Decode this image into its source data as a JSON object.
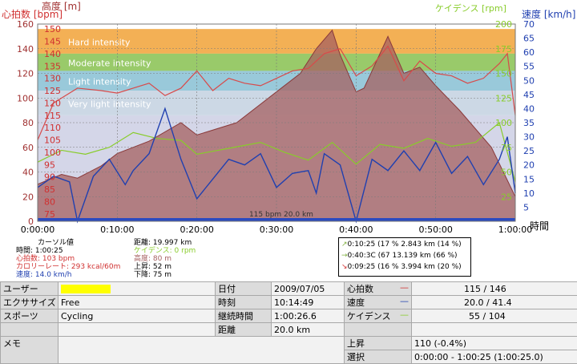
{
  "axes": {
    "left_title_alt": "高度 [m]",
    "left_title_hr": "心拍数 [bpm]",
    "right_title_cad": "ケイデンス [rpm]",
    "right_title_speed": "速度 [km/h]",
    "x_title": "時間",
    "alt_ticks": [
      "160",
      "140",
      "120",
      "100",
      "80",
      "60",
      "40",
      "20",
      "0"
    ],
    "hr_ticks": [
      "150",
      "145",
      "140",
      "135",
      "130",
      "125",
      "120",
      "115",
      "110",
      "105",
      "100",
      "95",
      "90",
      "85",
      "80",
      "75"
    ],
    "cad_ticks": [
      "200",
      "175",
      "150",
      "125",
      "100",
      "75",
      "50",
      "25"
    ],
    "speed_ticks": [
      "70",
      "65",
      "60",
      "55",
      "50",
      "45",
      "40",
      "35",
      "30",
      "25",
      "20",
      "15",
      "10",
      "5"
    ],
    "time_ticks": [
      "0:00:00",
      "0:10:00",
      "0:20:00",
      "0:30:00",
      "0:40:00",
      "0:50:00",
      "1:00:00"
    ]
  },
  "chart_data": {
    "type": "line",
    "x_unit": "minutes",
    "x_range": [
      0,
      60
    ],
    "ylim_altitude": [
      0,
      160
    ],
    "ylim_heartrate": [
      72,
      152
    ],
    "ylim_speed": [
      0,
      70
    ],
    "ylim_cadence": [
      0,
      200
    ],
    "zones": [
      {
        "name": "Hard intensity",
        "range": [
          140,
          150
        ],
        "color": "#f2a742"
      },
      {
        "name": "Moderate intensity",
        "range": [
          133,
          140
        ],
        "color": "#8ec45a"
      },
      {
        "name": "Light intensity",
        "range": [
          125,
          133
        ],
        "color": "#8ec3d6"
      },
      {
        "name": "Very light intensity",
        "range": [
          115,
          125
        ],
        "color": "#c6d4e2"
      }
    ],
    "series": [
      {
        "name": "高度",
        "color": "#a66060",
        "x": [
          0,
          3,
          5,
          8,
          10,
          14,
          18,
          20,
          25,
          30,
          33,
          35,
          37,
          38,
          40,
          41,
          44,
          46,
          48,
          50,
          53,
          57,
          60
        ],
        "values": [
          30,
          38,
          35,
          45,
          55,
          65,
          80,
          70,
          80,
          105,
          120,
          140,
          155,
          135,
          105,
          108,
          150,
          120,
          125,
          110,
          90,
          60,
          20
        ]
      },
      {
        "name": "心拍数",
        "color": "#d84a4a",
        "x": [
          0,
          2,
          5,
          8,
          10,
          12,
          14,
          16,
          18,
          20,
          22,
          24,
          26,
          28,
          30,
          32,
          34,
          36,
          38,
          40,
          42,
          44,
          46,
          48,
          50,
          52,
          54,
          56,
          58,
          59,
          60
        ],
        "values": [
          105,
          120,
          126,
          125,
          124,
          126,
          128,
          123,
          126,
          133,
          125,
          130,
          128,
          127,
          130,
          133,
          134,
          140,
          142,
          131,
          135,
          143,
          129,
          137,
          132,
          131,
          128,
          130,
          136,
          140,
          115
        ]
      },
      {
        "name": "速度",
        "color": "#2040b0",
        "x": [
          0,
          2,
          4,
          5,
          7,
          9,
          11,
          12,
          14,
          16,
          18,
          20,
          22,
          24,
          26,
          28,
          30,
          32,
          34,
          35,
          36,
          38,
          40,
          42,
          44,
          46,
          48,
          50,
          52,
          54,
          56,
          58,
          59,
          60
        ],
        "values": [
          12,
          16,
          14,
          0,
          16,
          22,
          13,
          18,
          24,
          40,
          22,
          8,
          15,
          22,
          20,
          24,
          12,
          17,
          18,
          10,
          24,
          20,
          0,
          22,
          18,
          25,
          18,
          28,
          17,
          23,
          13,
          22,
          30,
          10
        ]
      },
      {
        "name": "ケイデンス",
        "color": "#88cc2a",
        "x": [
          0,
          3,
          6,
          9,
          12,
          15,
          18,
          20,
          24,
          28,
          31,
          34,
          37,
          40,
          43,
          46,
          49,
          52,
          55,
          58,
          60
        ],
        "values": [
          60,
          72,
          68,
          75,
          90,
          84,
          82,
          68,
          74,
          80,
          70,
          62,
          80,
          58,
          78,
          74,
          84,
          76,
          80,
          100,
          40
        ]
      }
    ],
    "bottom_label": "115 bpm 20.0 km"
  },
  "cursor": {
    "title": "カーソル値",
    "time": "時間: 1:00:25",
    "hr": "心拍数: 103 bpm",
    "calorie": "カロリーレート: 293 kcal/60m",
    "speed": "速度: 14.0 km/h",
    "distance": "距離: 19.997 km",
    "cadence": "ケイデンス: 0 rpm",
    "altitude": "高度: 80 m",
    "ascent": "上昇: 52 m",
    "descent": "下降: 75 m"
  },
  "zone_summary": [
    {
      "text": "0:10:25 (17 % 2.843 km (14 %)",
      "color": "#80b040"
    },
    {
      "text": "0:40:3C (67   13.139 km (66 %)",
      "color": "#80b040"
    },
    {
      "text": "0:09:25 (16 % 3.994 km (20 %)",
      "color": "#d03030"
    }
  ],
  "info": {
    "user_label": "ユーザー",
    "exercise_label": "エクササイズ",
    "exercise_value": "Free",
    "sport_label": "スポーツ",
    "sport_value": "Cycling",
    "memo_label": "メモ",
    "date_label": "日付",
    "date_value": "2009/07/05",
    "time_label": "時刻",
    "time_value": "10:14:49",
    "duration_label": "継続時間",
    "duration_value": "1:00:26.6",
    "distance_label": "距離",
    "distance_value": "20.0 km",
    "hr_label": "心拍数",
    "hr_value": "115 / 146",
    "speed_label": "速度",
    "speed_value": "20.0 / 41.4",
    "cadence_label": "ケイデンス",
    "cadence_value": "55 / 104",
    "ascent_label": "上昇",
    "ascent_value": "110 (-0.4%)",
    "selection_label": "選択",
    "selection_value": "0:00:00 - 1:00:25 (1:00:25.0)"
  }
}
